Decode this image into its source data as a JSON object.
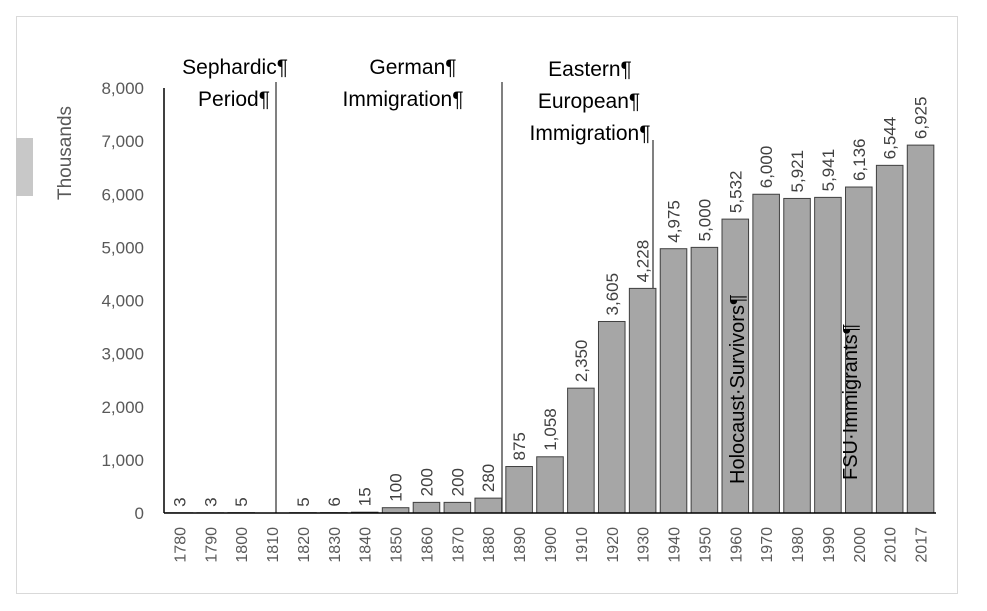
{
  "chart_data": {
    "type": "bar",
    "ylabel": "Thousands",
    "ylim": [
      0,
      8000
    ],
    "yticks": [
      "0",
      "1,000",
      "2,000",
      "3,000",
      "4,000",
      "5,000",
      "6,000",
      "7,000",
      "8,000"
    ],
    "categories": [
      "1780",
      "1790",
      "1800",
      "1810",
      "1820",
      "1830",
      "1840",
      "1850",
      "1860",
      "1870",
      "1880",
      "1890",
      "1900",
      "1910",
      "1920",
      "1930",
      "1940",
      "1950",
      "1960",
      "1970",
      "1980",
      "1990",
      "2000",
      "2010",
      "2017"
    ],
    "values": [
      3,
      3,
      5,
      null,
      5,
      6,
      15,
      100,
      200,
      200,
      280,
      875,
      1058,
      2350,
      3605,
      4228,
      4975,
      5000,
      5532,
      6000,
      5921,
      5941,
      6136,
      6544,
      6925
    ],
    "labels": [
      "3",
      "3",
      "5",
      "",
      "5",
      "6",
      "15",
      "100",
      "200",
      "200",
      "280",
      "875",
      "1,058",
      "2,350",
      "3,605",
      "4,228",
      "4,975",
      "5,000",
      "5,532",
      "6,000",
      "5,921",
      "5,941",
      "6,136",
      "6,544",
      "6,925"
    ],
    "eras": [
      {
        "lines": [
          "Sephardic¶",
          "Period¶"
        ]
      },
      {
        "lines": [
          "German¶",
          "Immigration¶"
        ]
      },
      {
        "lines": [
          "Eastern¶",
          "European¶",
          "Immigration¶"
        ]
      }
    ],
    "annotations": [
      {
        "text": "Holocaust·Survivors¶"
      },
      {
        "text": "FSU·Immigrants¶"
      }
    ],
    "grid": false,
    "legend": "none"
  }
}
